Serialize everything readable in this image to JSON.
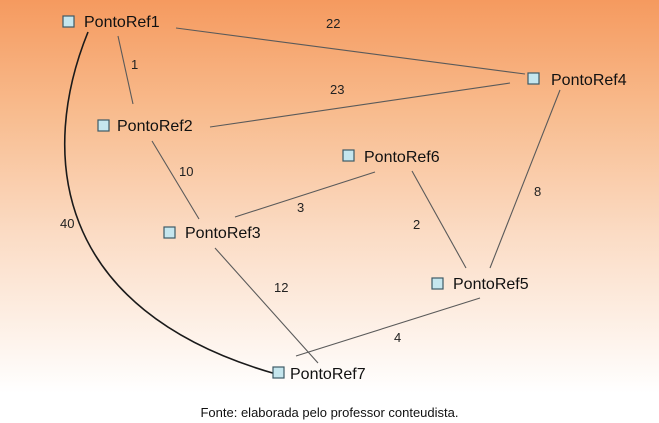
{
  "nodes": [
    {
      "id": "n1",
      "label": "PontoRef1"
    },
    {
      "id": "n2",
      "label": "PontoRef2"
    },
    {
      "id": "n3",
      "label": "PontoRef3"
    },
    {
      "id": "n4",
      "label": "PontoRef4"
    },
    {
      "id": "n5",
      "label": "PontoRef5"
    },
    {
      "id": "n6",
      "label": "PontoRef6"
    },
    {
      "id": "n7",
      "label": "PontoRef7"
    }
  ],
  "edges": [
    {
      "from": "n1",
      "to": "n4",
      "weight": "22"
    },
    {
      "from": "n1",
      "to": "n2",
      "weight": "1"
    },
    {
      "from": "n2",
      "to": "n4",
      "weight": "23"
    },
    {
      "from": "n2",
      "to": "n3",
      "weight": "10"
    },
    {
      "from": "n3",
      "to": "n6",
      "weight": "3"
    },
    {
      "from": "n6",
      "to": "n5",
      "weight": "2"
    },
    {
      "from": "n4",
      "to": "n5",
      "weight": "8"
    },
    {
      "from": "n1",
      "to": "n7",
      "weight": "40"
    },
    {
      "from": "n3",
      "to": "n7",
      "weight": "12"
    },
    {
      "from": "n7",
      "to": "n5",
      "weight": "4"
    }
  ],
  "caption": "Fonte: elaborada  pelo  professor  conteudista."
}
